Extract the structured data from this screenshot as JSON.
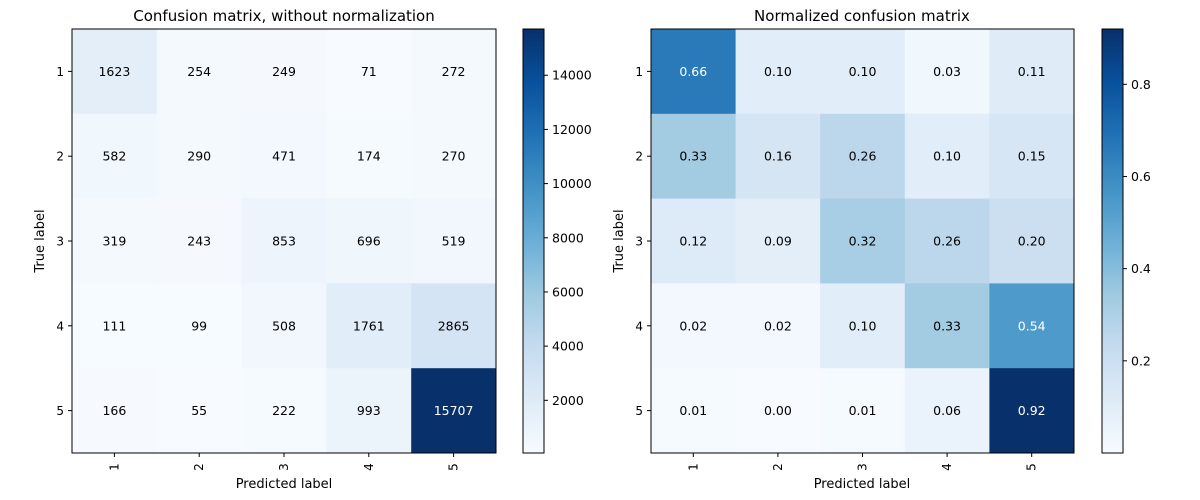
{
  "chart_data": [
    {
      "type": "heatmap",
      "title": "Confusion matrix, without normalization",
      "xlabel": "Predicted label",
      "ylabel": "True label",
      "x_categories": [
        "1",
        "2",
        "3",
        "4",
        "5"
      ],
      "y_categories": [
        "1",
        "2",
        "3",
        "4",
        "5"
      ],
      "values": [
        [
          1623,
          254,
          249,
          71,
          272
        ],
        [
          582,
          290,
          471,
          174,
          270
        ],
        [
          319,
          243,
          853,
          696,
          519
        ],
        [
          111,
          99,
          508,
          1761,
          2865
        ],
        [
          166,
          55,
          222,
          993,
          15707
        ]
      ],
      "value_labels": [
        [
          "1623",
          "254",
          "249",
          "71",
          "272"
        ],
        [
          "582",
          "290",
          "471",
          "174",
          "270"
        ],
        [
          "319",
          "243",
          "853",
          "696",
          "519"
        ],
        [
          "111",
          "99",
          "508",
          "1761",
          "2865"
        ],
        [
          "166",
          "55",
          "222",
          "993",
          "15707"
        ]
      ],
      "colorbar": {
        "range": [
          55,
          15707
        ],
        "ticks": [
          2000,
          4000,
          6000,
          8000,
          10000,
          12000,
          14000
        ],
        "tick_labels": [
          "2000",
          "4000",
          "6000",
          "8000",
          "10000",
          "12000",
          "14000"
        ],
        "colormap": "Blues"
      },
      "text_color_threshold": 7853.5,
      "text_colors": {
        "dark": "#000000",
        "light": "#ffffff"
      }
    },
    {
      "type": "heatmap",
      "title": "Normalized confusion matrix",
      "xlabel": "Predicted label",
      "ylabel": "True label",
      "x_categories": [
        "1",
        "2",
        "3",
        "4",
        "5"
      ],
      "y_categories": [
        "1",
        "2",
        "3",
        "4",
        "5"
      ],
      "values": [
        [
          0.66,
          0.1,
          0.1,
          0.03,
          0.11
        ],
        [
          0.33,
          0.16,
          0.26,
          0.1,
          0.15
        ],
        [
          0.12,
          0.09,
          0.32,
          0.26,
          0.2
        ],
        [
          0.02,
          0.02,
          0.1,
          0.33,
          0.54
        ],
        [
          0.01,
          0.0,
          0.01,
          0.06,
          0.92
        ]
      ],
      "value_labels": [
        [
          "0.66",
          "0.10",
          "0.10",
          "0.03",
          "0.11"
        ],
        [
          "0.33",
          "0.16",
          "0.26",
          "0.10",
          "0.15"
        ],
        [
          "0.12",
          "0.09",
          "0.32",
          "0.26",
          "0.20"
        ],
        [
          "0.02",
          "0.02",
          "0.10",
          "0.33",
          "0.54"
        ],
        [
          "0.01",
          "0.00",
          "0.01",
          "0.06",
          "0.92"
        ]
      ],
      "colorbar": {
        "range": [
          0.0,
          0.92
        ],
        "ticks": [
          0.2,
          0.4,
          0.6,
          0.8
        ],
        "tick_labels": [
          "0.2",
          "0.4",
          "0.6",
          "0.8"
        ],
        "colormap": "Blues"
      },
      "text_color_threshold": 0.46,
      "text_colors": {
        "dark": "#000000",
        "light": "#ffffff"
      }
    }
  ]
}
